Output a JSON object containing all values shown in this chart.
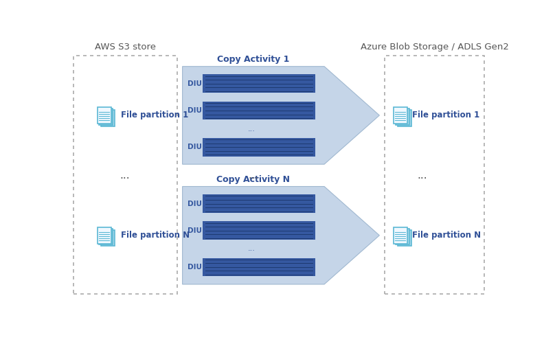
{
  "title_left": "AWS S3 store",
  "title_right": "Azure Blob Storage / ADLS Gen2",
  "copy_activity_1": "Copy Activity 1",
  "copy_activity_n": "Copy Activity N",
  "diu_label": "DIU",
  "dots": "...",
  "file_partition_1": "File partition 1",
  "file_partition_n": "File partition N",
  "bg_color": "#ffffff",
  "box_border_color": "#aaaaaa",
  "arrow_fill_color": "#c5d5e8",
  "arrow_edge_color": "#a0b8d0",
  "inner_box_color": "#c5d5e8",
  "diu_bar_color": "#3558a0",
  "diu_bar_line_color": "#1e3a70",
  "diu_text_color": "#3558a0",
  "activity_title_color": "#2f4f96",
  "title_color": "#555555",
  "partition_text_color": "#2f4f96",
  "dots_color": "#555555",
  "icon_front_fill": "#f0f8ff",
  "icon_front_stroke": "#5bb8d4",
  "icon_back_fill": "#a8d8ea",
  "icon_back_stroke": "#5bb8d4",
  "icon_line_color": "#5bb8d4",
  "icon_text_color": "#3558a0"
}
